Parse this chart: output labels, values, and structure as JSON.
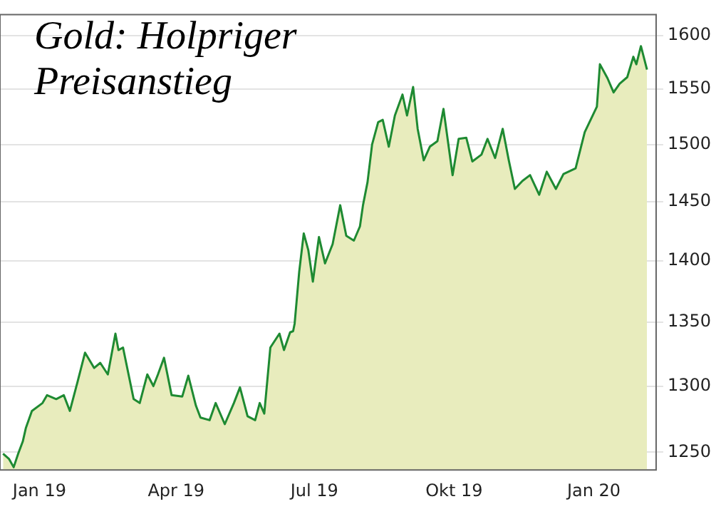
{
  "chart_data": {
    "type": "area",
    "title": "Gold: Holpriger Preisanstieg",
    "x": [
      "2018-12-08",
      "2018-12-12",
      "2018-12-15",
      "2018-12-18",
      "2018-12-21",
      "2018-12-23",
      "2018-12-27",
      "2019-01-03",
      "2019-01-06",
      "2019-01-12",
      "2019-01-17",
      "2019-01-21",
      "2019-01-26",
      "2019-01-31",
      "2019-02-06",
      "2019-02-10",
      "2019-02-15",
      "2019-02-20",
      "2019-02-22",
      "2019-02-25",
      "2019-03-04",
      "2019-03-08",
      "2019-03-13",
      "2019-03-17",
      "2019-03-20",
      "2019-03-24",
      "2019-03-29",
      "2019-04-05",
      "2019-04-09",
      "2019-04-14",
      "2019-04-17",
      "2019-04-23",
      "2019-04-27",
      "2019-05-03",
      "2019-05-09",
      "2019-05-13",
      "2019-05-18",
      "2019-05-23",
      "2019-05-26",
      "2019-05-29",
      "2019-06-02",
      "2019-06-08",
      "2019-06-11",
      "2019-06-15",
      "2019-06-17",
      "2019-06-18",
      "2019-06-21",
      "2019-06-24",
      "2019-06-27",
      "2019-06-30",
      "2019-07-04",
      "2019-07-08",
      "2019-07-13",
      "2019-07-18",
      "2019-07-22",
      "2019-07-27",
      "2019-07-31",
      "2019-08-02",
      "2019-08-05",
      "2019-08-08",
      "2019-08-12",
      "2019-08-15",
      "2019-08-19",
      "2019-08-23",
      "2019-08-28",
      "2019-08-31",
      "2019-09-04",
      "2019-09-07",
      "2019-09-11",
      "2019-09-15",
      "2019-09-20",
      "2019-09-24",
      "2019-09-30",
      "2019-10-04",
      "2019-10-09",
      "2019-10-13",
      "2019-10-19",
      "2019-10-23",
      "2019-10-28",
      "2019-11-02",
      "2019-11-06",
      "2019-11-10",
      "2019-11-15",
      "2019-11-20",
      "2019-11-26",
      "2019-12-01",
      "2019-12-07",
      "2019-12-12",
      "2019-12-20",
      "2019-12-26",
      "2020-01-03",
      "2020-01-05",
      "2020-01-10",
      "2020-01-14",
      "2020-01-18",
      "2020-01-23",
      "2020-01-27",
      "2020-01-29",
      "2020-02-01",
      "2020-02-05"
    ],
    "series": [
      {
        "color": "#1e8a32",
        "values": [
          1249,
          1245,
          1239,
          1249,
          1258,
          1268,
          1281,
          1287,
          1293,
          1290,
          1293,
          1281,
          1303,
          1326,
          1314,
          1318,
          1309,
          1341,
          1328,
          1330,
          1290,
          1287,
          1309,
          1300,
          1309,
          1322,
          1293,
          1292,
          1308,
          1285,
          1276,
          1274,
          1287,
          1271,
          1287,
          1299,
          1277,
          1274,
          1287,
          1279,
          1330,
          1341,
          1328,
          1342,
          1343,
          1349,
          1391,
          1423,
          1409,
          1383,
          1420,
          1398,
          1414,
          1447,
          1421,
          1417,
          1429,
          1447,
          1467,
          1500,
          1520,
          1522,
          1498,
          1526,
          1545,
          1526,
          1552,
          1514,
          1486,
          1498,
          1503,
          1532,
          1473,
          1505,
          1506,
          1485,
          1491,
          1505,
          1488,
          1514,
          1486,
          1461,
          1468,
          1473,
          1456,
          1476,
          1461,
          1474,
          1479,
          1511,
          1534,
          1573,
          1560,
          1547,
          1555,
          1561,
          1580,
          1573,
          1590,
          1568
        ]
      }
    ],
    "xlim": [
      "2018-12-06",
      "2020-02-11"
    ],
    "xticks": [
      {
        "value": "2019-01-01",
        "label": "Jan 19"
      },
      {
        "value": "2019-04-01",
        "label": "Apr 19"
      },
      {
        "value": "2019-07-01",
        "label": "Jul 19"
      },
      {
        "value": "2019-10-01",
        "label": "Okt 19"
      },
      {
        "value": "2020-01-01",
        "label": "Jan 20"
      }
    ],
    "ylim": [
      1237,
      1620
    ],
    "yticks": [
      1250,
      1300,
      1350,
      1400,
      1450,
      1500,
      1550,
      1600
    ],
    "log": "y",
    "grid": "y"
  }
}
